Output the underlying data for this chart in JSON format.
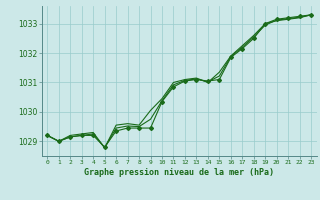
{
  "title": "Graphe pression niveau de la mer (hPa)",
  "bg_color": "#cce8e8",
  "grid_color": "#99cccc",
  "line_color": "#1a6b1a",
  "xlim": [
    -0.5,
    23.5
  ],
  "ylim": [
    1028.5,
    1033.6
  ],
  "yticks": [
    1029,
    1030,
    1031,
    1032,
    1033
  ],
  "xticks": [
    0,
    1,
    2,
    3,
    4,
    5,
    6,
    7,
    8,
    9,
    10,
    11,
    12,
    13,
    14,
    15,
    16,
    17,
    18,
    19,
    20,
    21,
    22,
    23
  ],
  "hours": [
    0,
    1,
    2,
    3,
    4,
    5,
    6,
    7,
    8,
    9,
    10,
    11,
    12,
    13,
    14,
    15,
    16,
    17,
    18,
    19,
    20,
    21,
    22,
    23
  ],
  "line1": [
    1029.2,
    1029.0,
    1029.15,
    1029.2,
    1029.2,
    1028.8,
    1029.35,
    1029.45,
    1029.45,
    1029.45,
    1030.35,
    1030.85,
    1031.05,
    1031.1,
    1031.05,
    1031.1,
    1031.85,
    1032.15,
    1032.5,
    1033.0,
    1033.15,
    1033.2,
    1033.25,
    1033.3
  ],
  "line2": [
    1029.2,
    1029.0,
    1029.2,
    1029.25,
    1029.3,
    1028.78,
    1029.55,
    1029.6,
    1029.55,
    1030.05,
    1030.45,
    1031.0,
    1031.1,
    1031.15,
    1031.0,
    1031.35,
    1031.9,
    1032.25,
    1032.6,
    1033.0,
    1033.1,
    1033.15,
    1033.2,
    1033.3
  ],
  "line3": [
    1029.2,
    1029.0,
    1029.15,
    1029.2,
    1029.25,
    1028.78,
    1029.45,
    1029.52,
    1029.5,
    1029.75,
    1030.38,
    1030.92,
    1031.07,
    1031.12,
    1031.02,
    1031.22,
    1031.88,
    1032.2,
    1032.55,
    1032.95,
    1033.12,
    1033.17,
    1033.22,
    1033.3
  ]
}
